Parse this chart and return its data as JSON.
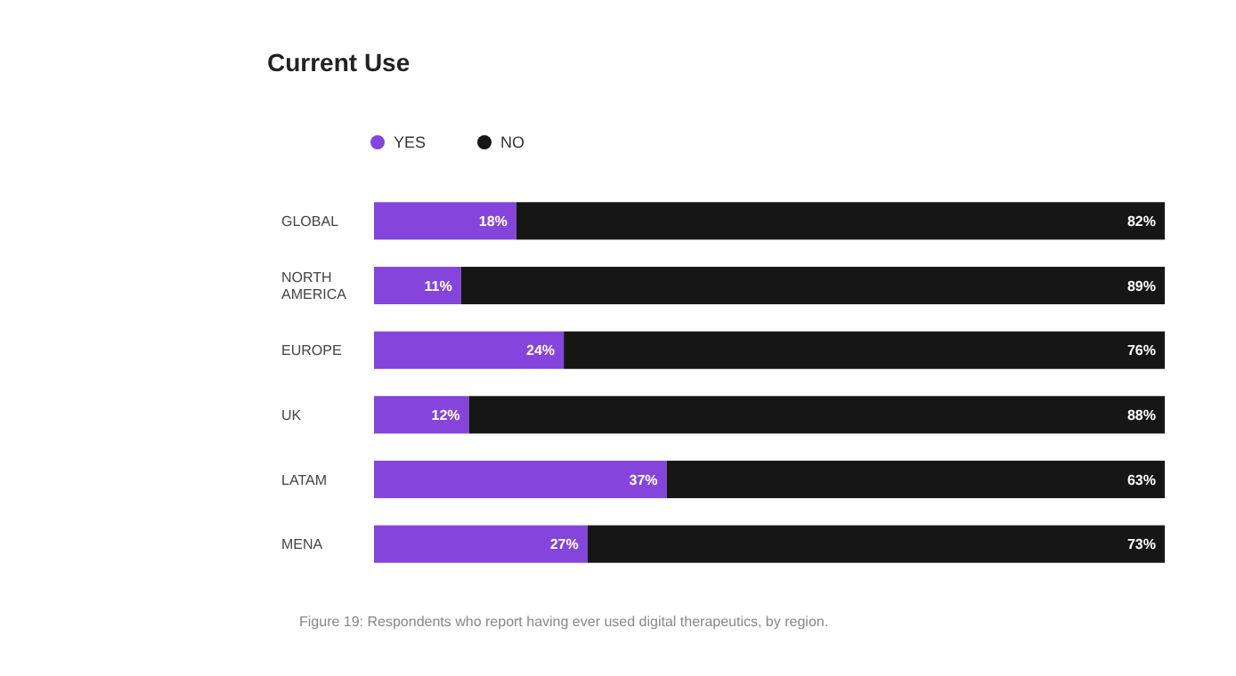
{
  "chart_data": {
    "type": "bar",
    "orientation": "horizontal",
    "stacked": true,
    "title": "Current Use",
    "categories": [
      "GLOBAL",
      "NORTH AMERICA",
      "EUROPE",
      "UK",
      "LATAM",
      "MENA"
    ],
    "series": [
      {
        "name": "YES",
        "color": "#8544dc",
        "values": [
          18,
          11,
          24,
          12,
          37,
          27
        ],
        "value_labels": [
          "18%",
          "11%",
          "24%",
          "12%",
          "37%",
          "27%"
        ]
      },
      {
        "name": "NO",
        "color": "#161616",
        "values": [
          82,
          89,
          76,
          88,
          63,
          73
        ],
        "value_labels": [
          "82%",
          "89%",
          "76%",
          "88%",
          "63%",
          "73%"
        ]
      }
    ],
    "legend": "top left",
    "grid": false,
    "annotations": [
      "Figure 19: Respondents who report having ever used digital therapeutics, by region."
    ]
  }
}
